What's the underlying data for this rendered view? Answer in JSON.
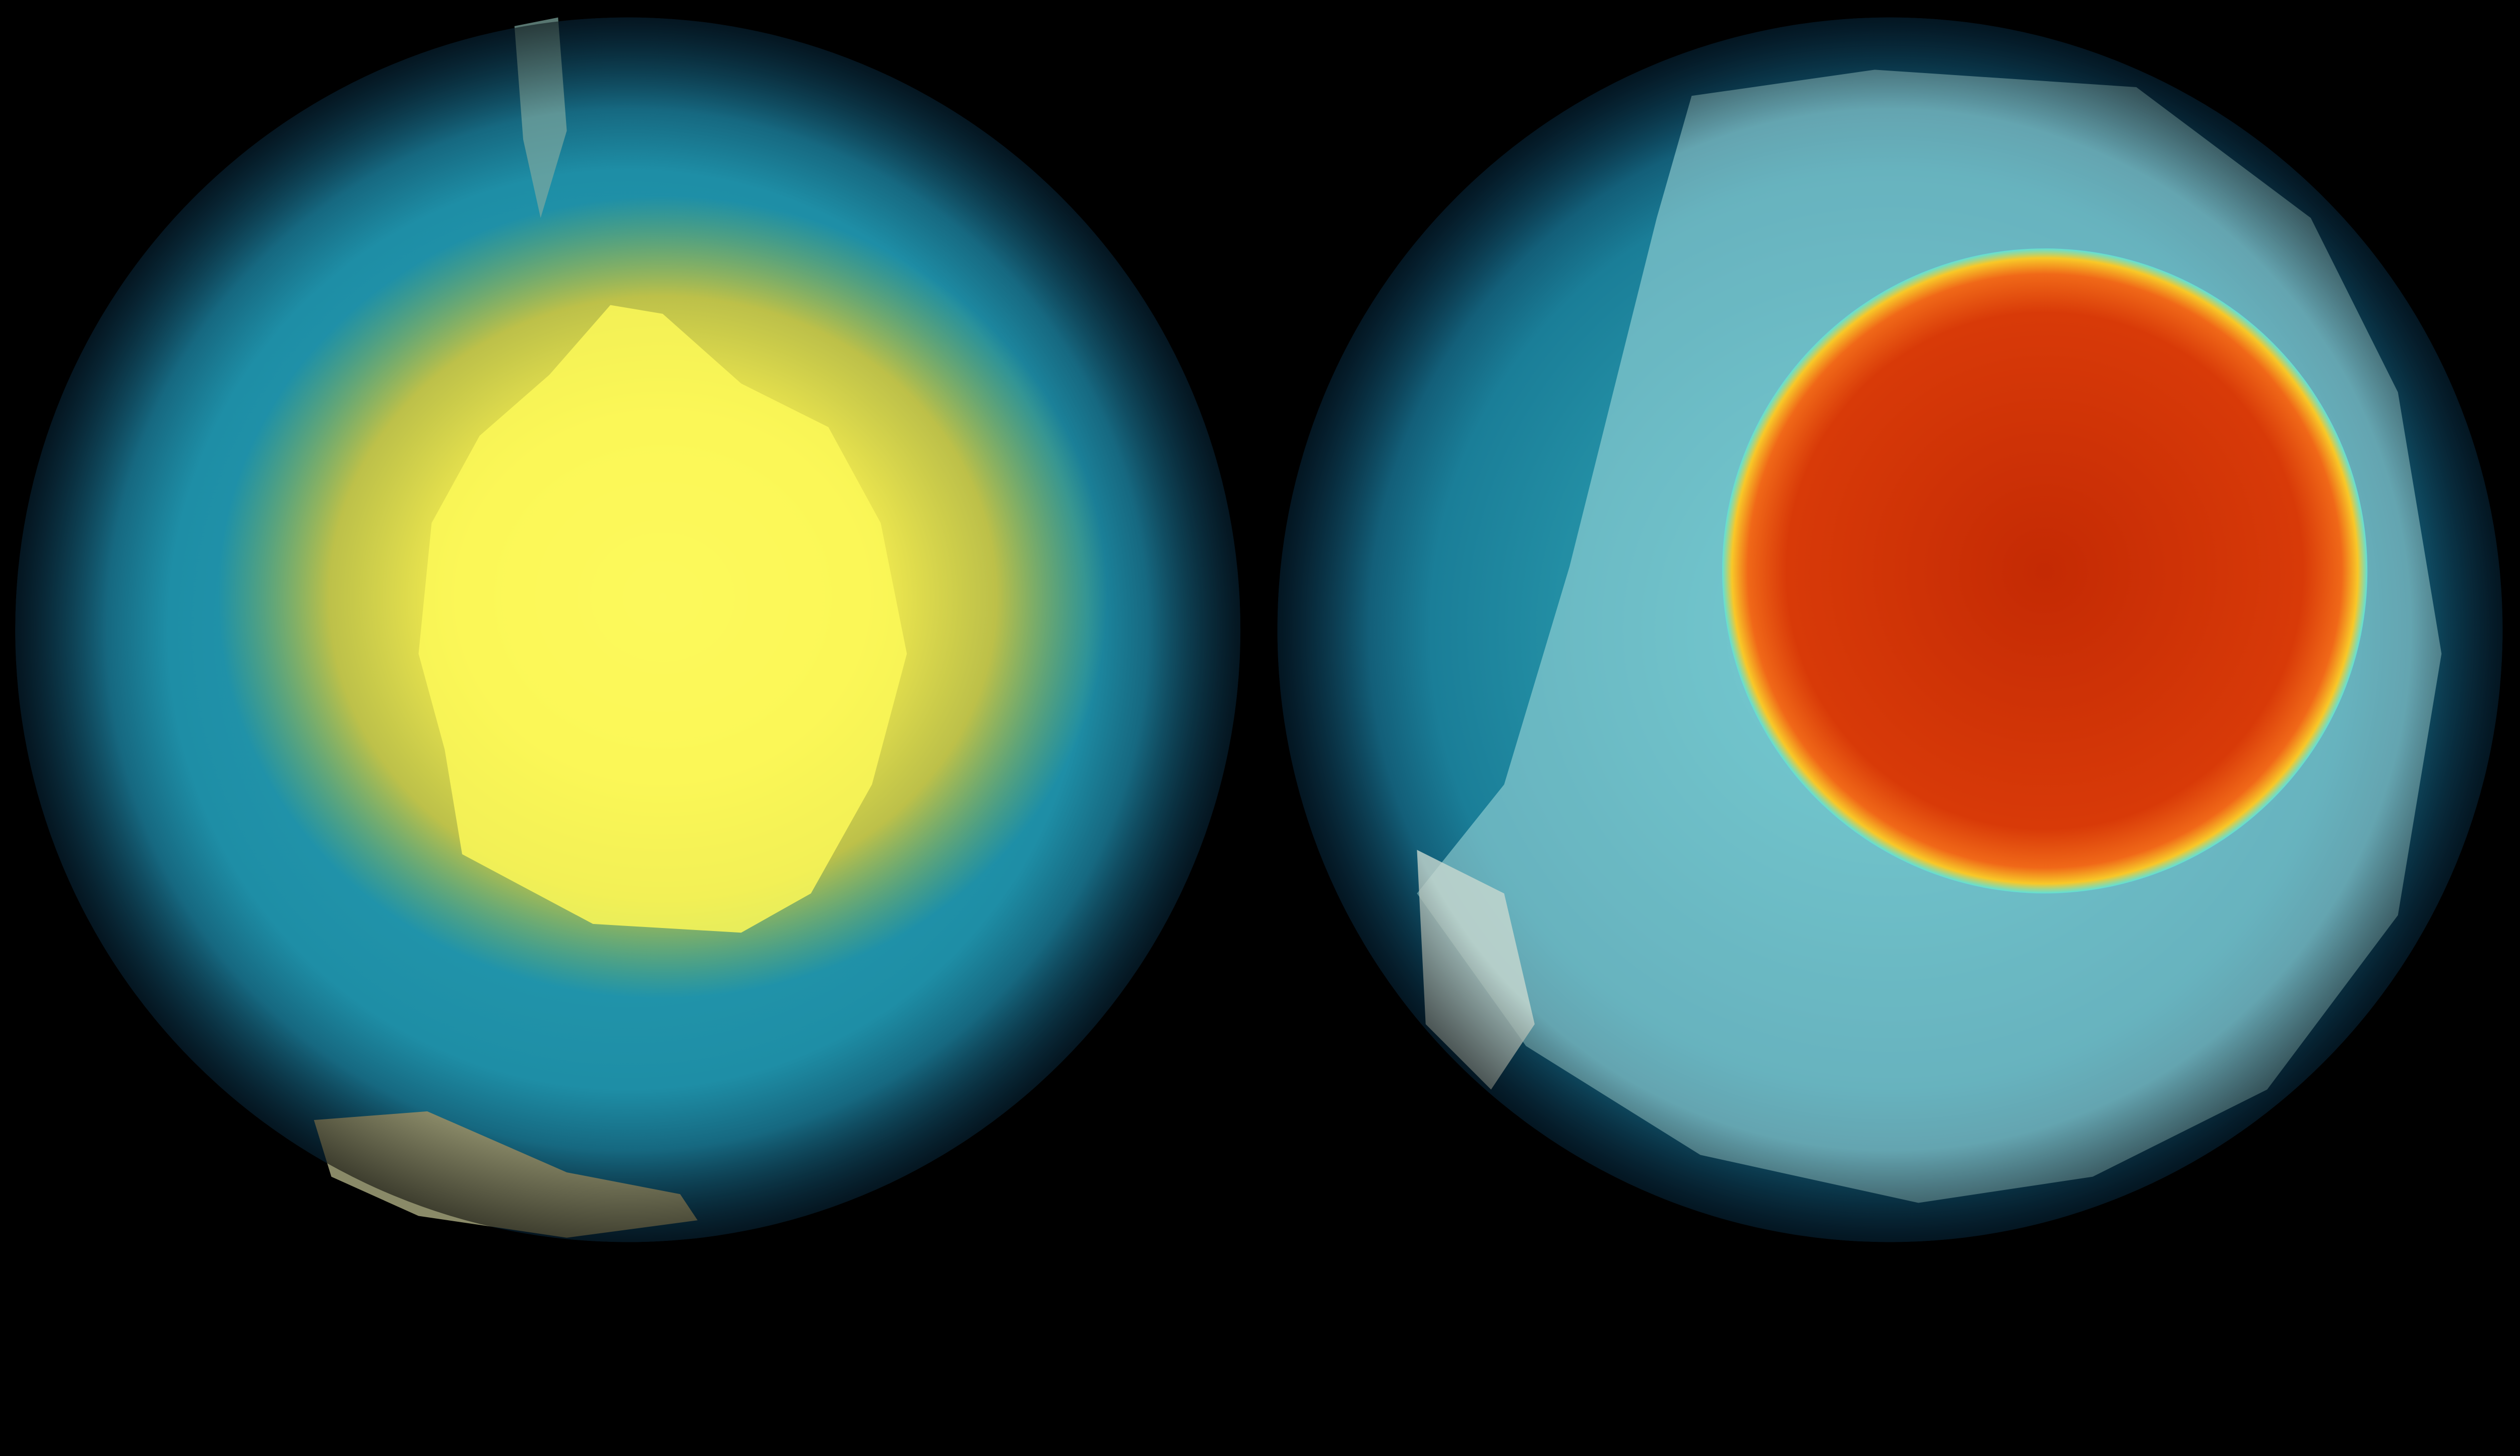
{
  "scene": {
    "background": "#000000",
    "globes": [
      {
        "label": "",
        "ocean_colors": [
          "#0a3a5a",
          "#1f8fa8",
          "#3fb8c0"
        ],
        "anomaly_colors": [
          "#ffff60",
          "#f5e640",
          "#d8c830"
        ],
        "land_colors": [
          "#7a7a5a",
          "#9aa0a0"
        ]
      },
      {
        "label": "",
        "ocean_colors": [
          "#0a3550",
          "#1d7f98",
          "#4fc8d0"
        ],
        "anomaly_colors": [
          "#b81e00",
          "#e04a10",
          "#f8c020"
        ],
        "land_colors": [
          "#b8e8e8",
          "#d0e0e0"
        ]
      }
    ]
  }
}
